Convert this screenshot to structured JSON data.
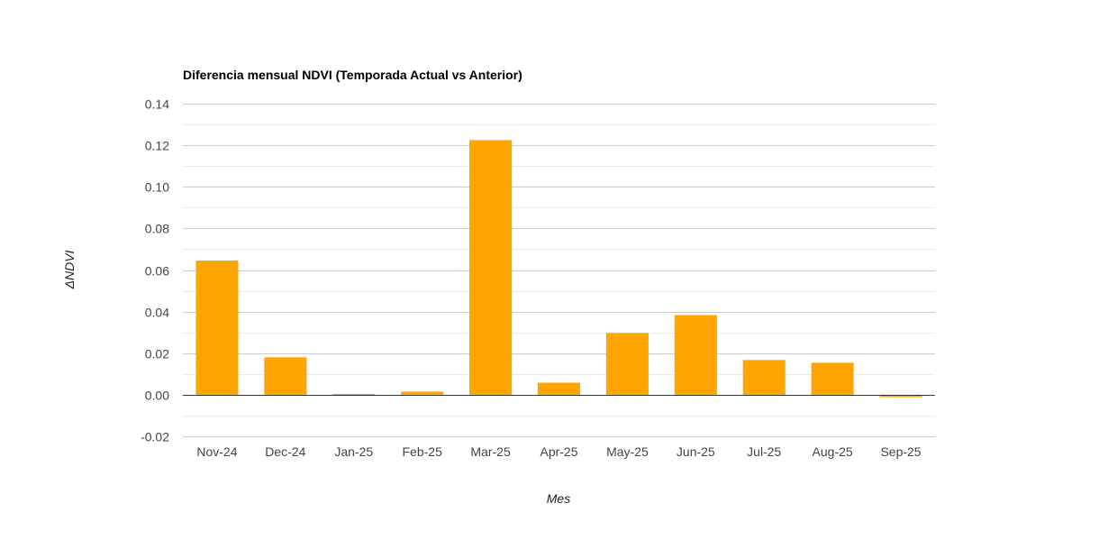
{
  "chart_data": {
    "type": "bar",
    "title": "Diferencia mensual NDVI (Temporada Actual vs Anterior)",
    "xlabel": "Mes",
    "ylabel": "ΔNDVI",
    "categories": [
      "Nov-24",
      "Dec-24",
      "Jan-25",
      "Feb-25",
      "Mar-25",
      "Apr-25",
      "May-25",
      "Jun-25",
      "Jul-25",
      "Aug-25",
      "Sep-25"
    ],
    "values": [
      0.0645,
      0.018,
      0.0004,
      0.0015,
      0.1225,
      0.0058,
      0.0297,
      0.0383,
      0.0167,
      0.0154,
      -0.0012
    ],
    "ylim": [
      -0.02,
      0.14
    ],
    "yticks": [
      -0.02,
      0.0,
      0.02,
      0.04,
      0.06,
      0.08,
      0.1,
      0.12,
      0.14
    ],
    "ytick_labels": [
      "-0.02",
      "0.00",
      "0.02",
      "0.04",
      "0.06",
      "0.08",
      "0.10",
      "0.12",
      "0.14"
    ],
    "grid": true,
    "minor_grid": true,
    "legend": "none",
    "colors": {
      "bar": "#FFA500",
      "grid": "#cccccc",
      "minor_grid": "#ebebeb",
      "baseline": "#333333"
    }
  }
}
